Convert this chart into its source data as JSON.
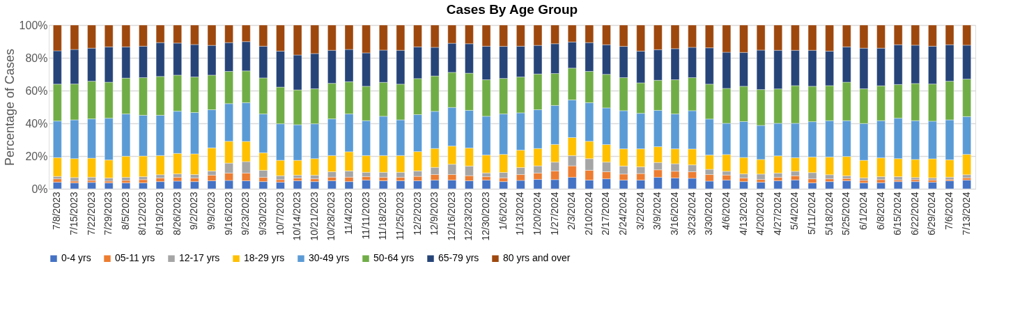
{
  "chart_data": {
    "type": "bar",
    "stacked": true,
    "title": "Cases By Age Group",
    "ylabel": "Percentage of Cases",
    "categories": [
      "7/8/2023",
      "7/15/2023",
      "7/22/2023",
      "7/29/2023",
      "8/5/2023",
      "8/12/2023",
      "8/19/2023",
      "8/26/2023",
      "9/2/2023",
      "9/9/2023",
      "9/16/2023",
      "9/23/2023",
      "9/30/2023",
      "10/7/2023",
      "10/14/2023",
      "10/21/2023",
      "10/28/2023",
      "11/4/2023",
      "11/11/2023",
      "11/18/2023",
      "11/25/2023",
      "12/2/2023",
      "12/9/2023",
      "12/16/2023",
      "12/23/2023",
      "12/30/2023",
      "1/6/2024",
      "1/13/2024",
      "1/20/2024",
      "1/27/2024",
      "2/3/2024",
      "2/10/2024",
      "2/17/2024",
      "2/24/2024",
      "3/2/2024",
      "3/9/2024",
      "3/16/2024",
      "3/23/2024",
      "3/30/2024",
      "4/6/2024",
      "4/13/2024",
      "4/20/2024",
      "4/27/2024",
      "5/4/2024",
      "5/11/2024",
      "5/18/2024",
      "5/25/2024",
      "6/1/2024",
      "6/8/2024",
      "6/15/2024",
      "6/22/2024",
      "6/29/2024",
      "7/6/2024",
      "7/13/2024"
    ],
    "ylim": [
      0,
      100
    ],
    "yticks": [
      {
        "value": 0,
        "label": "0%"
      },
      {
        "value": 20,
        "label": "20%"
      },
      {
        "value": 40,
        "label": "40%"
      },
      {
        "value": 60,
        "label": "60%"
      },
      {
        "value": 80,
        "label": "80%"
      },
      {
        "value": 100,
        "label": "100%"
      }
    ],
    "grid": "y",
    "legend": "bottom",
    "series": [
      {
        "name": "0-4 yrs",
        "color": "#4472c4",
        "values": [
          4.0,
          3.6,
          3.9,
          3.6,
          3.6,
          3.6,
          4.4,
          4.7,
          4.4,
          4.9,
          5.1,
          4.9,
          4.4,
          4.0,
          4.9,
          4.4,
          4.9,
          4.4,
          5.3,
          4.9,
          4.9,
          4.9,
          5.3,
          5.3,
          4.9,
          5.3,
          4.4,
          5.1,
          5.7,
          5.6,
          7.0,
          5.3,
          6.1,
          5.3,
          5.3,
          7.0,
          6.6,
          6.4,
          4.7,
          5.3,
          4.4,
          4.0,
          4.9,
          5.4,
          3.6,
          4.4,
          4.9,
          3.6,
          3.7,
          4.4,
          4.4,
          4.0,
          4.9,
          5.3
        ]
      },
      {
        "name": "05-11 yrs",
        "color": "#ed7d31",
        "values": [
          2.1,
          1.1,
          1.2,
          1.1,
          1.5,
          2.0,
          2.2,
          2.3,
          2.2,
          3.4,
          4.5,
          4.7,
          2.6,
          1.6,
          1.7,
          1.7,
          2.2,
          2.7,
          2.1,
          2.1,
          2.1,
          2.7,
          3.4,
          3.4,
          3.1,
          2.1,
          2.3,
          3.6,
          3.9,
          5.3,
          7.0,
          6.0,
          4.3,
          3.7,
          4.0,
          4.6,
          4.1,
          4.0,
          4.0,
          3.1,
          2.2,
          1.7,
          2.1,
          2.5,
          2.5,
          1.7,
          1.4,
          1.5,
          1.9,
          1.0,
          1.2,
          1.3,
          0.8,
          1.4
        ]
      },
      {
        "name": "12-17 yrs",
        "color": "#a5a5a5",
        "values": [
          1.5,
          2.2,
          2.0,
          1.9,
          1.9,
          1.8,
          2.0,
          2.1,
          2.1,
          2.6,
          6.1,
          7.0,
          4.3,
          2.4,
          1.7,
          2.2,
          3.3,
          3.8,
          2.7,
          3.1,
          3.1,
          3.3,
          4.4,
          6.3,
          5.9,
          2.3,
          3.3,
          4.3,
          4.4,
          5.4,
          6.3,
          7.1,
          5.9,
          4.9,
          4.1,
          4.5,
          4.6,
          4.2,
          3.2,
          2.3,
          2.5,
          3.3,
          2.6,
          2.8,
          3.8,
          2.5,
          1.6,
          1.6,
          1.8,
          2.0,
          1.3,
          1.4,
          1.4,
          1.9
        ]
      },
      {
        "name": "18-29 yrs",
        "color": "#ffc000",
        "values": [
          11.4,
          11.5,
          11.6,
          11.0,
          12.9,
          12.6,
          11.7,
          12.5,
          12.6,
          14.1,
          13.3,
          12.3,
          10.7,
          9.4,
          9.1,
          10.1,
          9.9,
          11.7,
          10.2,
          10.2,
          10.2,
          11.8,
          11.5,
          11.1,
          11.0,
          10.9,
          11.0,
          10.6,
          10.6,
          10.8,
          11.0,
          10.6,
          10.7,
          10.5,
          11.0,
          9.6,
          9.1,
          9.7,
          8.7,
          10.2,
          10.0,
          8.9,
          10.5,
          8.3,
          9.5,
          10.8,
          11.8,
          10.7,
          11.5,
          11.0,
          11.0,
          11.6,
          10.6,
          12.4
        ]
      },
      {
        "name": "30-49 yrs",
        "color": "#5b9bd5",
        "values": [
          22.4,
          23.7,
          24.0,
          25.5,
          25.8,
          24.9,
          24.6,
          25.8,
          25.3,
          23.3,
          23.0,
          23.7,
          23.7,
          22.3,
          21.7,
          21.3,
          22.4,
          23.1,
          21.3,
          24.0,
          21.8,
          22.6,
          22.7,
          23.6,
          23.0,
          23.7,
          24.7,
          22.8,
          23.7,
          23.8,
          23.0,
          23.6,
          22.4,
          23.3,
          21.7,
          22.2,
          21.3,
          23.4,
          22.0,
          19.1,
          22.0,
          20.8,
          19.9,
          21.0,
          21.6,
          22.2,
          21.9,
          22.5,
          22.7,
          24.7,
          23.7,
          23.0,
          24.4,
          23.1
        ]
      },
      {
        "name": "50-64 yrs",
        "color": "#70ad47",
        "values": [
          22.5,
          21.9,
          23.0,
          22.0,
          21.9,
          23.0,
          23.7,
          22.0,
          21.7,
          21.1,
          19.7,
          19.4,
          22.0,
          22.4,
          21.3,
          21.4,
          21.7,
          19.7,
          21.0,
          20.7,
          21.8,
          22.0,
          21.6,
          21.4,
          22.7,
          22.3,
          21.7,
          21.9,
          21.8,
          19.5,
          19.4,
          19.1,
          20.5,
          20.2,
          18.6,
          18.4,
          20.9,
          20.2,
          21.3,
          21.3,
          21.5,
          21.9,
          21.0,
          23.0,
          21.6,
          21.4,
          23.5,
          21.2,
          21.3,
          20.6,
          22.7,
          22.7,
          23.6,
          22.9
        ]
      },
      {
        "name": "65-79 yrs",
        "color": "#264478",
        "values": [
          20.4,
          21.1,
          20.2,
          21.6,
          19.1,
          19.2,
          20.7,
          19.6,
          19.8,
          18.2,
          17.6,
          17.9,
          19.4,
          22.0,
          21.3,
          21.5,
          20.2,
          19.7,
          20.4,
          19.7,
          20.7,
          19.4,
          17.5,
          17.8,
          18.0,
          20.5,
          19.6,
          18.8,
          17.5,
          18.2,
          16.0,
          17.6,
          18.1,
          19.1,
          19.4,
          18.7,
          19.0,
          18.5,
          22.2,
          22.1,
          20.7,
          24.1,
          23.6,
          21.6,
          22.0,
          21.1,
          21.6,
          24.8,
          23.0,
          24.3,
          23.4,
          23.1,
          22.3,
          20.7
        ]
      },
      {
        "name": "80 yrs and over",
        "color": "#9e480e",
        "values": [
          15.7,
          14.9,
          14.1,
          13.3,
          13.3,
          12.9,
          10.7,
          11.0,
          11.9,
          12.4,
          10.7,
          10.1,
          12.9,
          15.9,
          18.3,
          17.4,
          15.4,
          14.9,
          17.0,
          15.3,
          15.4,
          13.3,
          13.6,
          11.1,
          11.4,
          12.9,
          13.0,
          12.9,
          12.4,
          11.4,
          10.3,
          10.7,
          12.0,
          13.0,
          15.9,
          15.0,
          14.4,
          13.6,
          13.9,
          16.6,
          16.7,
          15.3,
          15.4,
          15.4,
          15.4,
          15.9,
          13.3,
          14.1,
          14.1,
          12.0,
          12.3,
          12.9,
          12.0,
          12.3
        ]
      }
    ]
  }
}
